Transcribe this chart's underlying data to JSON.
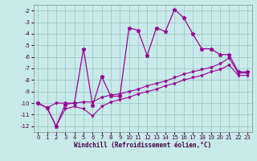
{
  "xlabel": "Windchill (Refroidissement éolien,°C)",
  "bg_color": "#c8eaea",
  "grid_color": "#a0c8c8",
  "line_color": "#990099",
  "xlim": [
    -0.5,
    23.5
  ],
  "ylim": [
    -12.5,
    -1.5
  ],
  "xticks": [
    0,
    1,
    2,
    3,
    4,
    5,
    6,
    7,
    8,
    9,
    10,
    11,
    12,
    13,
    14,
    15,
    16,
    17,
    18,
    19,
    20,
    21,
    22,
    23
  ],
  "yticks": [
    -12,
    -11,
    -10,
    -9,
    -8,
    -7,
    -6,
    -5,
    -4,
    -3,
    -2
  ],
  "line1_y": [
    -10.0,
    -10.4,
    -12.0,
    -10.1,
    -10.0,
    -5.3,
    -10.2,
    -7.7,
    -9.4,
    -9.4,
    -3.5,
    -3.7,
    -5.9,
    -3.5,
    -3.8,
    -1.9,
    -2.6,
    -4.0,
    -5.3,
    -5.3,
    -5.8,
    -5.8,
    -7.3,
    -7.3
  ],
  "line2_y": [
    -10.0,
    -10.4,
    -10.0,
    -10.0,
    -10.0,
    -9.9,
    -9.9,
    -9.5,
    -9.3,
    -9.2,
    -9.0,
    -8.8,
    -8.5,
    -8.3,
    -8.1,
    -7.8,
    -7.5,
    -7.3,
    -7.1,
    -6.9,
    -6.6,
    -6.1,
    -7.4,
    -7.4
  ],
  "line3_y": [
    -10.0,
    -10.4,
    -12.0,
    -10.5,
    -10.3,
    -10.5,
    -11.1,
    -10.3,
    -9.9,
    -9.7,
    -9.5,
    -9.2,
    -9.0,
    -8.8,
    -8.5,
    -8.3,
    -8.0,
    -7.8,
    -7.6,
    -7.3,
    -7.1,
    -6.7,
    -7.6,
    -7.6
  ]
}
